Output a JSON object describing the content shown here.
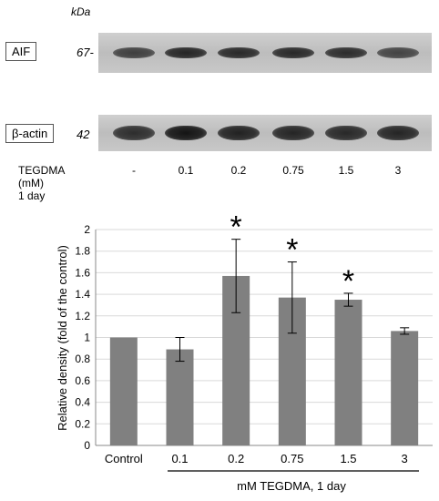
{
  "kda_label": "kDa",
  "blots": [
    {
      "name": "AIF",
      "mw": "67-",
      "intensities": [
        0.75,
        0.9,
        0.88,
        0.88,
        0.86,
        0.72
      ]
    },
    {
      "name": "β-actin",
      "mw": "42",
      "intensities": [
        0.85,
        1.0,
        0.92,
        0.9,
        0.88,
        0.9
      ]
    }
  ],
  "treatment_label": [
    "TEGDMA",
    "(mM)",
    "1 day"
  ],
  "doses": [
    "-",
    "0.1",
    "0.2",
    "0.75",
    "1.5",
    "3"
  ],
  "colors": {
    "bar": "#808080",
    "axis": "#000000",
    "grid": "#d9d9d9"
  },
  "chart_data": {
    "type": "bar",
    "categories": [
      "Control",
      "0.1",
      "0.2",
      "0.75",
      "1.5",
      "3"
    ],
    "values": [
      1.0,
      0.89,
      1.57,
      1.37,
      1.35,
      1.06
    ],
    "errors": [
      0.0,
      0.11,
      0.34,
      0.33,
      0.06,
      0.03
    ],
    "significant": [
      false,
      false,
      true,
      true,
      true,
      false
    ],
    "significance_marker": "*",
    "ylabel": "Relative density (fold of the control)",
    "xlabel": "mM TEGDMA,  1 day",
    "ylim": [
      0,
      2
    ],
    "yticks": [
      "0",
      "0.2",
      "0.4",
      "0.6",
      "0.8",
      "1",
      "1.2",
      "1.4",
      "1.6",
      "1.8",
      "2"
    ],
    "grid": true
  }
}
